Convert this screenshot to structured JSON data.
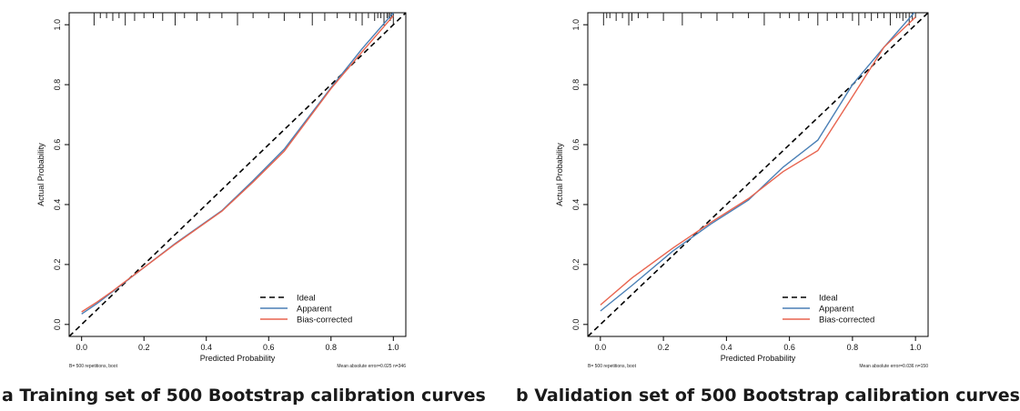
{
  "chart_data": [
    {
      "type": "line",
      "panel_id": "a",
      "caption": "a Training set of 500 Bootstrap calibration curves",
      "xlabel": "Predicted Probability",
      "ylabel": "Actual Probability",
      "xlim": [
        -0.04,
        1.04
      ],
      "ylim": [
        -0.04,
        1.04
      ],
      "xticks": [
        "0.0",
        "0.2",
        "0.4",
        "0.6",
        "0.8",
        "1.0"
      ],
      "yticks": [
        "0.0",
        "0.2",
        "0.4",
        "0.6",
        "0.8",
        "1.0"
      ],
      "grid": false,
      "legend_position": "bottom-right",
      "footnote_left": "B= 500 repetitions, boot",
      "footnote_right": "Mean absolute error=0.025 n=346",
      "rug_direction": "down",
      "rug": [
        0.04,
        0.06,
        0.08,
        0.1,
        0.12,
        0.14,
        0.17,
        0.2,
        0.23,
        0.26,
        0.3,
        0.33,
        0.37,
        0.41,
        0.45,
        0.5,
        0.55,
        0.6,
        0.65,
        0.7,
        0.74,
        0.78,
        0.82,
        0.86,
        0.88,
        0.9,
        0.92,
        0.94,
        0.95,
        0.96,
        0.97,
        0.98,
        0.985,
        0.99,
        0.995,
        1.0
      ],
      "series": [
        {
          "name": "Ideal",
          "color": "#000000",
          "dash": true,
          "x": [
            -0.04,
            1.04
          ],
          "y": [
            -0.04,
            1.04
          ]
        },
        {
          "name": "Apparent",
          "color": "#4a7fb5",
          "dash": false,
          "x": [
            0.0,
            0.05,
            0.1,
            0.2,
            0.3,
            0.45,
            0.55,
            0.65,
            0.8,
            0.9,
            1.0
          ],
          "y": [
            0.035,
            0.07,
            0.11,
            0.19,
            0.27,
            0.38,
            0.48,
            0.585,
            0.79,
            0.92,
            1.04
          ]
        },
        {
          "name": "Bias-corrected",
          "color": "#e8644f",
          "dash": false,
          "x": [
            0.0,
            0.05,
            0.1,
            0.2,
            0.3,
            0.45,
            0.55,
            0.65,
            0.8,
            0.9,
            1.0
          ],
          "y": [
            0.042,
            0.075,
            0.112,
            0.19,
            0.268,
            0.378,
            0.475,
            0.578,
            0.787,
            0.91,
            1.03
          ]
        }
      ]
    },
    {
      "type": "line",
      "panel_id": "b",
      "caption": "b Validation set of 500 Bootstrap calibration curves",
      "xlabel": "Predicted Probability",
      "ylabel": "Actual Probability",
      "xlim": [
        -0.04,
        1.04
      ],
      "ylim": [
        -0.04,
        1.04
      ],
      "xticks": [
        "0.0",
        "0.2",
        "0.4",
        "0.6",
        "0.8",
        "1.0"
      ],
      "yticks": [
        "0.0",
        "0.2",
        "0.4",
        "0.6",
        "0.8",
        "1.0"
      ],
      "grid": false,
      "legend_position": "bottom-right",
      "footnote_left": "B= 500 repetitions, boot",
      "footnote_right": "Mean absolute error=0.036 n=150",
      "rug_direction": "down",
      "rug": [
        0.01,
        0.02,
        0.03,
        0.05,
        0.07,
        0.09,
        0.1,
        0.12,
        0.15,
        0.2,
        0.26,
        0.32,
        0.37,
        0.42,
        0.47,
        0.52,
        0.57,
        0.6,
        0.63,
        0.66,
        0.69,
        0.72,
        0.75,
        0.77,
        0.8,
        0.82,
        0.84,
        0.86,
        0.88,
        0.9,
        0.92,
        0.94,
        0.95,
        0.96,
        0.97,
        0.98,
        0.99,
        1.0
      ],
      "series": [
        {
          "name": "Ideal",
          "color": "#000000",
          "dash": true,
          "x": [
            -0.04,
            1.04
          ],
          "y": [
            -0.04,
            1.04
          ]
        },
        {
          "name": "Apparent",
          "color": "#4a7fb5",
          "dash": false,
          "x": [
            0.0,
            0.1,
            0.23,
            0.35,
            0.47,
            0.58,
            0.69,
            0.8,
            0.9,
            1.0
          ],
          "y": [
            0.045,
            0.13,
            0.245,
            0.335,
            0.415,
            0.525,
            0.615,
            0.8,
            0.925,
            1.045
          ]
        },
        {
          "name": "Bias-corrected",
          "color": "#e8644f",
          "dash": false,
          "x": [
            0.0,
            0.1,
            0.23,
            0.35,
            0.47,
            0.58,
            0.69,
            0.8,
            0.9,
            1.0
          ],
          "y": [
            0.065,
            0.155,
            0.255,
            0.34,
            0.42,
            0.51,
            0.58,
            0.76,
            0.925,
            1.025
          ]
        }
      ]
    }
  ]
}
